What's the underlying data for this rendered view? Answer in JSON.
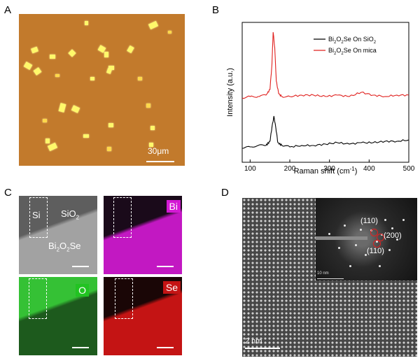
{
  "panels": {
    "a": {
      "letter": "A",
      "scale_bar": "30μm"
    },
    "b": {
      "letter": "B"
    },
    "c": {
      "letter": "C",
      "maps": [
        {
          "label": "Si",
          "label2": "SiO",
          "label2_sub": "2",
          "label3": "Bi",
          "label3_sub": "2",
          "label3b": "O",
          "label3b_sub": "2",
          "label3c": "Se",
          "color_top": "#5e5e5e",
          "color_bottom": "#a0a0a0"
        },
        {
          "label": "Bi",
          "color_top": "#1a0a1a",
          "color_bottom": "#d319d3",
          "label_box": "#d319d3"
        },
        {
          "label": "O",
          "color_top": "#35c135",
          "color_bottom": "#1f5f1f",
          "label_box": "#22c322"
        },
        {
          "label": "Se",
          "color_top": "#1a0606",
          "color_bottom": "#c41414",
          "label_box": "#c41414"
        }
      ]
    },
    "d": {
      "letter": "D",
      "scale_bar": "2 nm",
      "inset_scale": "10 nm",
      "indices": [
        "(110)",
        "(200)",
        "(110)"
      ],
      "marker_color": "#e02020"
    }
  },
  "chart_data": {
    "type": "line",
    "xlabel": "Raman shift (cm",
    "xlabel_sup": "-1",
    "xlabel_close": ")",
    "ylabel": "Intensity (a.u.)",
    "xlim": [
      80,
      500
    ],
    "x_ticks": [
      100,
      200,
      300,
      400,
      500
    ],
    "legend": "top-right",
    "series": [
      {
        "name_parts": [
          "Bi",
          "2",
          "O",
          "2",
          "Se On SiO",
          "2"
        ],
        "color": "#000000",
        "x": [
          80,
          100,
          120,
          140,
          150,
          155,
          160,
          165,
          170,
          180,
          200,
          230,
          260,
          290,
          320,
          350,
          380,
          410,
          440,
          470,
          500
        ],
        "y": [
          0.1,
          0.11,
          0.12,
          0.12,
          0.15,
          0.25,
          0.33,
          0.24,
          0.14,
          0.12,
          0.11,
          0.12,
          0.12,
          0.13,
          0.14,
          0.13,
          0.14,
          0.14,
          0.15,
          0.15,
          0.16
        ]
      },
      {
        "name_parts": [
          "Bi",
          "2",
          "O",
          "2",
          "Se On mica"
        ],
        "color": "#e0201e",
        "x": [
          80,
          100,
          120,
          140,
          150,
          155,
          158,
          162,
          166,
          172,
          180,
          200,
          230,
          260,
          290,
          320,
          350,
          380,
          410,
          440,
          470,
          500
        ],
        "y": [
          0.46,
          0.47,
          0.47,
          0.48,
          0.52,
          0.7,
          0.93,
          0.82,
          0.58,
          0.49,
          0.47,
          0.47,
          0.48,
          0.48,
          0.47,
          0.48,
          0.47,
          0.5,
          0.48,
          0.47,
          0.48,
          0.48
        ]
      }
    ]
  }
}
